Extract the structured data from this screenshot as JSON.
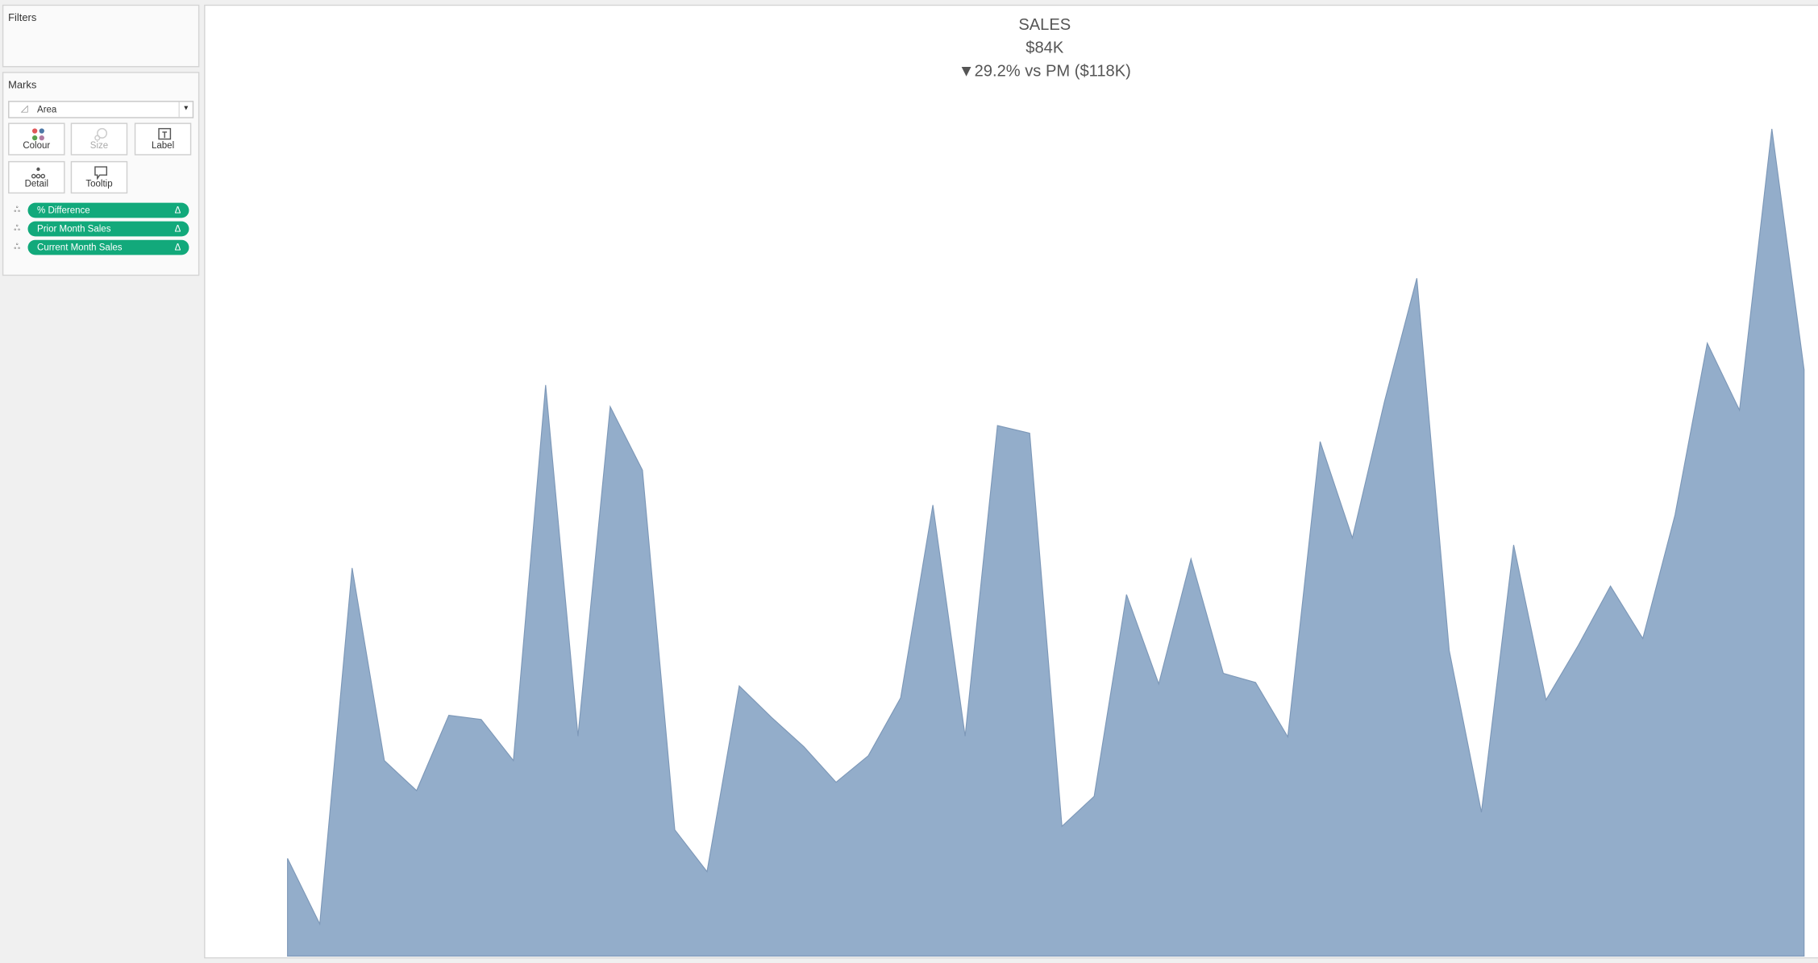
{
  "filters": {
    "title": "Filters"
  },
  "marks": {
    "title": "Marks",
    "mark_type": "Area",
    "buttons": [
      "Colour",
      "Size",
      "Label",
      "Detail",
      "Tooltip"
    ],
    "pills": [
      {
        "label": "% Difference",
        "icon": "Δ"
      },
      {
        "label": "Prior Month Sales",
        "icon": "Δ"
      },
      {
        "label": "Current Month Sales",
        "icon": "Δ"
      }
    ]
  },
  "chart_data": {
    "type": "area",
    "title": "SALES",
    "subtitle": "$84K",
    "annotation": "▼29.2% vs PM ($118K)",
    "color": "#93adca",
    "values": [
      14,
      4.6,
      55.6,
      28,
      23.7,
      34.5,
      33.9,
      28,
      81.8,
      31.5,
      78.7,
      69.6,
      18.1,
      12.1,
      38.7,
      34.2,
      30,
      24.9,
      28.7,
      37,
      64.6,
      31.5,
      76,
      74.9,
      18.6,
      22.9,
      51.8,
      39,
      56.9,
      40.5,
      39.2,
      31.4,
      73.7,
      59.9,
      79.5,
      97.1,
      43.8,
      20.6,
      58.9,
      36.7,
      44.5,
      53,
      45.5,
      63.2,
      87.8,
      78.2,
      118.5,
      84
    ],
    "ylim": [
      0,
      125
    ]
  }
}
